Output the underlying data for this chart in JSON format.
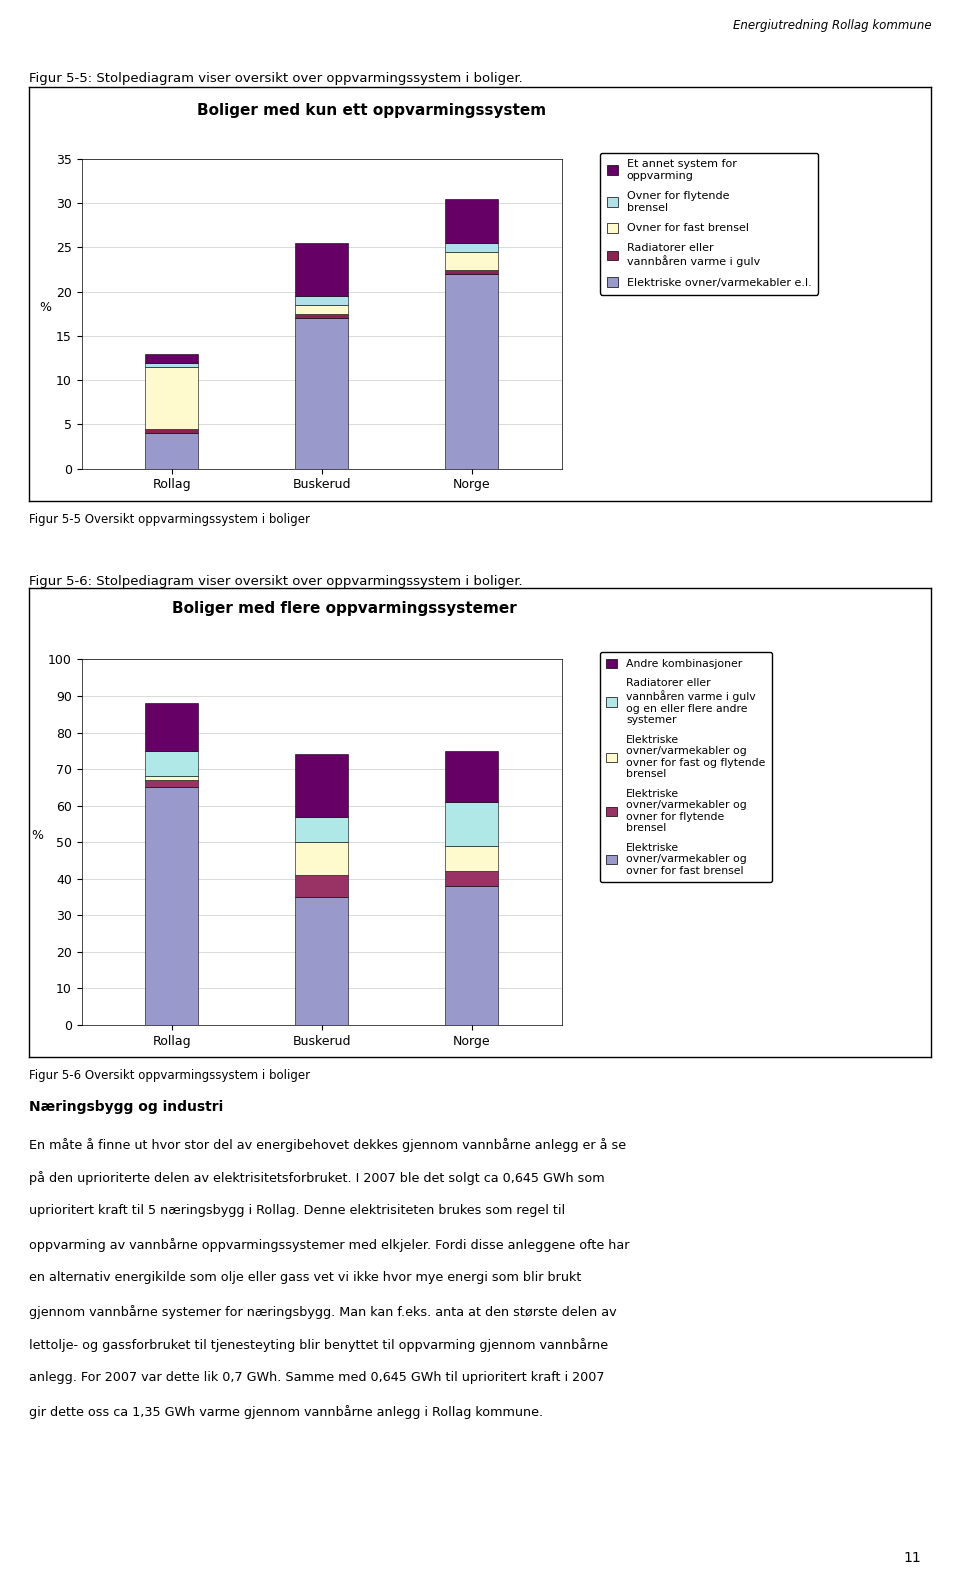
{
  "page_title": "Energiutredning Rollag kommune",
  "fig1_title": "Figur 5-5: Stolpediagram viser oversikt over oppvarmingssystem i boliger.",
  "chart1_title": "Boliger med kun ett oppvarmingssystem",
  "chart1_caption": "Figur 5-5 Oversikt oppvarmingssystem i boliger",
  "fig2_title": "Figur 5-6: Stolpediagram viser oversikt over oppvarmingssystem i boliger.",
  "chart2_title": "Boliger med flere oppvarmingssystemer",
  "chart2_caption": "Figur 5-6 Oversikt oppvarmingssystem i boliger",
  "categories": [
    "Rollag",
    "Buskerud",
    "Norge"
  ],
  "ylabel": "%",
  "chart1_ylim": [
    0,
    35
  ],
  "chart1_yticks": [
    0,
    5,
    10,
    15,
    20,
    25,
    30,
    35
  ],
  "chart2_ylim": [
    0,
    100
  ],
  "chart2_yticks": [
    0,
    10,
    20,
    30,
    40,
    50,
    60,
    70,
    80,
    90,
    100
  ],
  "chart1_colors": [
    "#9999cc",
    "#8b2252",
    "#fffacd",
    "#b0e0e8",
    "#660066"
  ],
  "chart1_labels": [
    "Elektriske ovner/varmekabler e.l.",
    "Radiatorer eller\nvannbåren varme i gulv",
    "Ovner for fast brensel",
    "Ovner for flytende\nbrensel",
    "Et annet system for\noppvarming"
  ],
  "chart1_data": {
    "Rollag": [
      4.0,
      0.5,
      7.0,
      0.5,
      1.0
    ],
    "Buskerud": [
      17.0,
      0.5,
      1.0,
      1.0,
      6.0
    ],
    "Norge": [
      22.0,
      0.5,
      2.0,
      1.0,
      5.0
    ]
  },
  "chart2_colors": [
    "#9999cc",
    "#993366",
    "#fffacd",
    "#b0e8e8",
    "#660066"
  ],
  "chart2_labels": [
    "Elektriske\novner/varmekabler og\novner for fast brensel",
    "Elektriske\novner/varmekabler og\novner for flytende\nbrensel",
    "Elektriske\novner/varmekabler og\novner for fast og flytende\nbrensel",
    "Radiatorer eller\nvannbåren varme i gulv\nog en eller flere andre\nsystemer",
    "Andre kombinasjoner"
  ],
  "chart2_data": {
    "Rollag": [
      65.0,
      2.0,
      1.0,
      7.0,
      13.0
    ],
    "Buskerud": [
      35.0,
      6.0,
      9.0,
      7.0,
      17.0
    ],
    "Norge": [
      38.0,
      4.0,
      7.0,
      12.0,
      14.0
    ]
  },
  "text_heading": "Næringsbygg og industri",
  "text_lines": [
    "En måte å finne ut hvor stor del av energibehovet dekkes gjennom vannbårne anlegg er å se",
    "på den uprioriterte delen av elektrisitetsforbruket. I 2007 ble det solgt ca 0,645 GWh som",
    "uprioritert kraft til 5 næringsbygg i Rollag. Denne elektrisiteten brukes som regel til",
    "oppvarming av vannbårne oppvarmingssystemer med elkjeler. Fordi disse anleggene ofte har",
    "en alternativ energikilde som olje eller gass vet vi ikke hvor mye energi som blir brukt",
    "gjennom vannbårne systemer for næringsbygg. Man kan f.eks. anta at den største delen av",
    "lettolje- og gassforbruket til tjenesteyting blir benyttet til oppvarming gjennom vannbårne",
    "anlegg. For 2007 var dette lik 0,7 GWh. Samme med 0,645 GWh til uprioritert kraft i 2007",
    "gir dette oss ca 1,35 GWh varme gjennom vannbårne anlegg i Rollag kommune."
  ],
  "page_number": "11",
  "background_color": "#ffffff"
}
